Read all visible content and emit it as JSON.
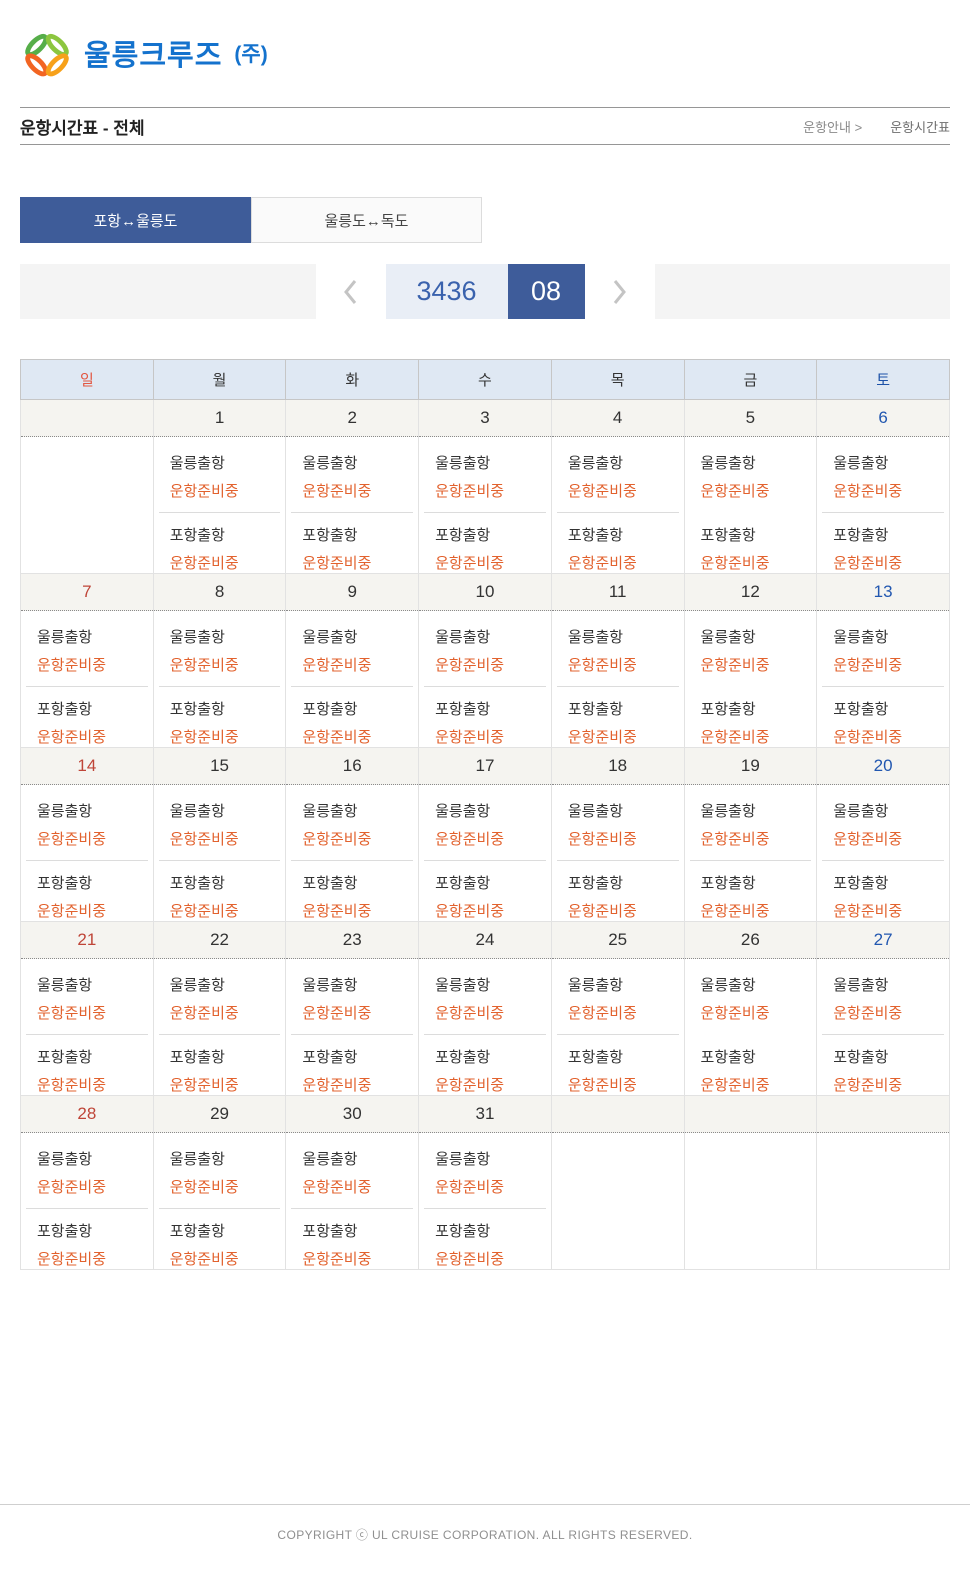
{
  "logo": {
    "text": "울릉크루즈",
    "suffix": "(주)"
  },
  "page": {
    "title": "운항시간표 - 전체",
    "breadcrumb_parent": "운항안내 >",
    "breadcrumb_current": "운항시간표"
  },
  "tabs": [
    {
      "label": "포항↔울릉도",
      "active": true
    },
    {
      "label": "울릉도↔독도",
      "active": false
    }
  ],
  "nav": {
    "year": "3436",
    "month": "08"
  },
  "colors": {
    "brand_blue": "#1472cd",
    "tab_active_blue": "#3e5c99",
    "month_box_blue": "#3e5c9a",
    "year_box_bg": "#e9eef6",
    "header_row_bg": "#dfe8f3",
    "date_row_bg": "#f5f4f0",
    "status_orange": "#e2622e",
    "sunday_red": "#bf4538",
    "saturday_blue": "#2257b0"
  },
  "calendar": {
    "day_headers": [
      {
        "label": "일",
        "type": "sun"
      },
      {
        "label": "월",
        "type": "weekday"
      },
      {
        "label": "화",
        "type": "weekday"
      },
      {
        "label": "수",
        "type": "weekday"
      },
      {
        "label": "목",
        "type": "weekday"
      },
      {
        "label": "금",
        "type": "weekday"
      },
      {
        "label": "토",
        "type": "sat"
      }
    ],
    "weeks": [
      [
        {
          "date": "",
          "type": "empty",
          "entries": null
        },
        {
          "date": "1",
          "type": "weekday",
          "divider": true,
          "entries": [
            {
              "label": "울릉출항",
              "status": "운항준비중"
            },
            {
              "label": "포항출항",
              "status": "운항준비중"
            }
          ]
        },
        {
          "date": "2",
          "type": "weekday",
          "divider": true,
          "entries": [
            {
              "label": "울릉출항",
              "status": "운항준비중"
            },
            {
              "label": "포항출항",
              "status": "운항준비중"
            }
          ]
        },
        {
          "date": "3",
          "type": "weekday",
          "divider": true,
          "entries": [
            {
              "label": "울릉출항",
              "status": "운항준비중"
            },
            {
              "label": "포항출항",
              "status": "운항준비중"
            }
          ]
        },
        {
          "date": "4",
          "type": "weekday",
          "divider": true,
          "entries": [
            {
              "label": "울릉출항",
              "status": "운항준비중"
            },
            {
              "label": "포항출항",
              "status": "운항준비중"
            }
          ]
        },
        {
          "date": "5",
          "type": "weekday",
          "divider": false,
          "entries": [
            {
              "label": "울릉출항",
              "status": "운항준비중"
            },
            {
              "label": "포항출항",
              "status": "운항준비중"
            }
          ]
        },
        {
          "date": "6",
          "type": "sat",
          "divider": true,
          "entries": [
            {
              "label": "울릉출항",
              "status": "운항준비중"
            },
            {
              "label": "포항출항",
              "status": "운항준비중"
            }
          ]
        }
      ],
      [
        {
          "date": "7",
          "type": "sun",
          "divider": true,
          "entries": [
            {
              "label": "울릉출항",
              "status": "운항준비중"
            },
            {
              "label": "포항출항",
              "status": "운항준비중"
            }
          ]
        },
        {
          "date": "8",
          "type": "weekday",
          "divider": true,
          "entries": [
            {
              "label": "울릉출항",
              "status": "운항준비중"
            },
            {
              "label": "포항출항",
              "status": "운항준비중"
            }
          ]
        },
        {
          "date": "9",
          "type": "weekday",
          "divider": true,
          "entries": [
            {
              "label": "울릉출항",
              "status": "운항준비중"
            },
            {
              "label": "포항출항",
              "status": "운항준비중"
            }
          ]
        },
        {
          "date": "10",
          "type": "weekday",
          "divider": true,
          "entries": [
            {
              "label": "울릉출항",
              "status": "운항준비중"
            },
            {
              "label": "포항출항",
              "status": "운항준비중"
            }
          ]
        },
        {
          "date": "11",
          "type": "weekday",
          "divider": true,
          "entries": [
            {
              "label": "울릉출항",
              "status": "운항준비중"
            },
            {
              "label": "포항출항",
              "status": "운항준비중"
            }
          ]
        },
        {
          "date": "12",
          "type": "weekday",
          "divider": false,
          "entries": [
            {
              "label": "울릉출항",
              "status": "운항준비중"
            },
            {
              "label": "포항출항",
              "status": "운항준비중"
            }
          ]
        },
        {
          "date": "13",
          "type": "sat",
          "divider": true,
          "entries": [
            {
              "label": "울릉출항",
              "status": "운항준비중"
            },
            {
              "label": "포항출항",
              "status": "운항준비중"
            }
          ]
        }
      ],
      [
        {
          "date": "14",
          "type": "sun",
          "divider": true,
          "entries": [
            {
              "label": "울릉출항",
              "status": "운항준비중"
            },
            {
              "label": "포항출항",
              "status": "운항준비중"
            }
          ]
        },
        {
          "date": "15",
          "type": "weekday",
          "divider": true,
          "entries": [
            {
              "label": "울릉출항",
              "status": "운항준비중"
            },
            {
              "label": "포항출항",
              "status": "운항준비중"
            }
          ]
        },
        {
          "date": "16",
          "type": "weekday",
          "divider": true,
          "entries": [
            {
              "label": "울릉출항",
              "status": "운항준비중"
            },
            {
              "label": "포항출항",
              "status": "운항준비중"
            }
          ]
        },
        {
          "date": "17",
          "type": "weekday",
          "divider": true,
          "entries": [
            {
              "label": "울릉출항",
              "status": "운항준비중"
            },
            {
              "label": "포항출항",
              "status": "운항준비중"
            }
          ]
        },
        {
          "date": "18",
          "type": "weekday",
          "divider": true,
          "entries": [
            {
              "label": "울릉출항",
              "status": "운항준비중"
            },
            {
              "label": "포항출항",
              "status": "운항준비중"
            }
          ]
        },
        {
          "date": "19",
          "type": "weekday",
          "divider": true,
          "entries": [
            {
              "label": "울릉출항",
              "status": "운항준비중"
            },
            {
              "label": "포항출항",
              "status": "운항준비중"
            }
          ]
        },
        {
          "date": "20",
          "type": "sat",
          "divider": true,
          "entries": [
            {
              "label": "울릉출항",
              "status": "운항준비중"
            },
            {
              "label": "포항출항",
              "status": "운항준비중"
            }
          ]
        }
      ],
      [
        {
          "date": "21",
          "type": "sun",
          "divider": true,
          "entries": [
            {
              "label": "울릉출항",
              "status": "운항준비중"
            },
            {
              "label": "포항출항",
              "status": "운항준비중"
            }
          ]
        },
        {
          "date": "22",
          "type": "weekday",
          "divider": true,
          "entries": [
            {
              "label": "울릉출항",
              "status": "운항준비중"
            },
            {
              "label": "포항출항",
              "status": "운항준비중"
            }
          ]
        },
        {
          "date": "23",
          "type": "weekday",
          "divider": true,
          "entries": [
            {
              "label": "울릉출항",
              "status": "운항준비중"
            },
            {
              "label": "포항출항",
              "status": "운항준비중"
            }
          ]
        },
        {
          "date": "24",
          "type": "weekday",
          "divider": true,
          "entries": [
            {
              "label": "울릉출항",
              "status": "운항준비중"
            },
            {
              "label": "포항출항",
              "status": "운항준비중"
            }
          ]
        },
        {
          "date": "25",
          "type": "weekday",
          "divider": true,
          "entries": [
            {
              "label": "울릉출항",
              "status": "운항준비중"
            },
            {
              "label": "포항출항",
              "status": "운항준비중"
            }
          ]
        },
        {
          "date": "26",
          "type": "weekday",
          "divider": false,
          "entries": [
            {
              "label": "울릉출항",
              "status": "운항준비중"
            },
            {
              "label": "포항출항",
              "status": "운항준비중"
            }
          ]
        },
        {
          "date": "27",
          "type": "sat",
          "divider": true,
          "entries": [
            {
              "label": "울릉출항",
              "status": "운항준비중"
            },
            {
              "label": "포항출항",
              "status": "운항준비중"
            }
          ]
        }
      ],
      [
        {
          "date": "28",
          "type": "sun",
          "divider": true,
          "entries": [
            {
              "label": "울릉출항",
              "status": "운항준비중"
            },
            {
              "label": "포항출항",
              "status": "운항준비중"
            }
          ]
        },
        {
          "date": "29",
          "type": "weekday",
          "divider": true,
          "entries": [
            {
              "label": "울릉출항",
              "status": "운항준비중"
            },
            {
              "label": "포항출항",
              "status": "운항준비중"
            }
          ]
        },
        {
          "date": "30",
          "type": "weekday",
          "divider": true,
          "entries": [
            {
              "label": "울릉출항",
              "status": "운항준비중"
            },
            {
              "label": "포항출항",
              "status": "운항준비중"
            }
          ]
        },
        {
          "date": "31",
          "type": "weekday",
          "divider": true,
          "entries": [
            {
              "label": "울릉출항",
              "status": "운항준비중"
            },
            {
              "label": "포항출항",
              "status": "운항준비중"
            }
          ]
        },
        {
          "date": "",
          "type": "empty",
          "entries": null
        },
        {
          "date": "",
          "type": "empty",
          "entries": null
        },
        {
          "date": "",
          "type": "empty",
          "entries": null
        }
      ]
    ]
  },
  "footer": {
    "copyright": "COPYRIGHT ⓒ UL CRUISE CORPORATION. ALL RIGHTS RESERVED."
  }
}
